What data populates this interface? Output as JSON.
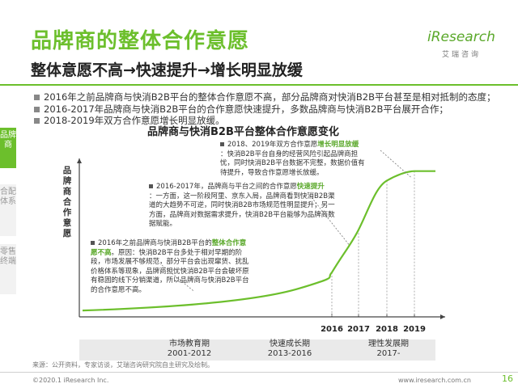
{
  "header": {
    "title": "品牌商的整体合作意愿",
    "subtitle": "整体意愿不高→快速提升→增长明显放缓",
    "logo_text": "iResearch",
    "logo_cn": "艾瑞咨询"
  },
  "side_tabs": [
    {
      "label": "品牌商"
    },
    {
      "label": "合配体系"
    },
    {
      "label": "零售终端"
    }
  ],
  "bullets": [
    "2016年之前品牌商与快消B2B平台的整体合作意愿不高，部分品牌商对快消B2B平台甚至是相对抵制的态度；",
    "2016-2017年品牌商与快消B2B平台的合作意愿快速提升，多数品牌商与快消B2B平台展开合作；",
    "2018-2019年双方合作意愿增长明显放缓。"
  ],
  "chart_data": {
    "type": "line",
    "title": "品牌商与快消B2B平台整体合作意愿变化",
    "ylabel": "品牌商合作意愿",
    "xlabel": "",
    "x": [
      "2016",
      "2017",
      "2018",
      "2019"
    ],
    "year_labels": [
      "2016",
      "2017",
      "2018",
      "2019"
    ],
    "series": [
      {
        "values": [
          0.28,
          0.55,
          0.86,
          0.92
        ]
      }
    ],
    "stages": [
      {
        "name": "市场教育期",
        "years": "2001-2012"
      },
      {
        "name": "快速成长期",
        "years": "2013-2016"
      },
      {
        "name": "理性发展期",
        "years": "2017-"
      }
    ],
    "annotations": [
      {
        "text_pre": "2016年之前品牌商与快消B2B平台的",
        "highlight": "整体合作意愿不高",
        "text_post": "。原因：快消B2B平台多处于相对早期的阶段，市场发展不够规范，部分平台会出现窜货、扰乱价格体系等现象，品牌商担忧快消B2B平台会破坏原有稳固的线下分销渠道，所以品牌商与快消B2B平台的合作意愿不高。"
      },
      {
        "text_pre": "2016-2017年，品牌商与平台之间的合作意愿",
        "highlight": "快速提升",
        "text_post": "：一方面，这一阶段阿里、京东入局，品牌商看到快消B2B渠道的大趋势不可逆，同时快消B2B市场规范性明显提升；另一方面，品牌商对数据需求提升，快消B2B平台能够为品牌商数据赋能。"
      },
      {
        "text_pre": "2018、2019年双方合作意愿",
        "highlight": "增长明显放缓",
        "text_post": "：快消B2B平台自身的经营风险引起品牌商担忧，同时快消B2B平台数据不完整，数据价值有待提升，导致合作意愿增长放缓。"
      }
    ],
    "colors": {
      "line": "#6cbf2c",
      "axis": "#444444"
    }
  },
  "footer": {
    "source": "来源：公开资料，专家访谈，艾瑞咨询研究院自主研究及绘制。",
    "copyright": "©2020.1 iResearch Inc.",
    "site": "www.iresearch.com.cn",
    "page": "16"
  }
}
